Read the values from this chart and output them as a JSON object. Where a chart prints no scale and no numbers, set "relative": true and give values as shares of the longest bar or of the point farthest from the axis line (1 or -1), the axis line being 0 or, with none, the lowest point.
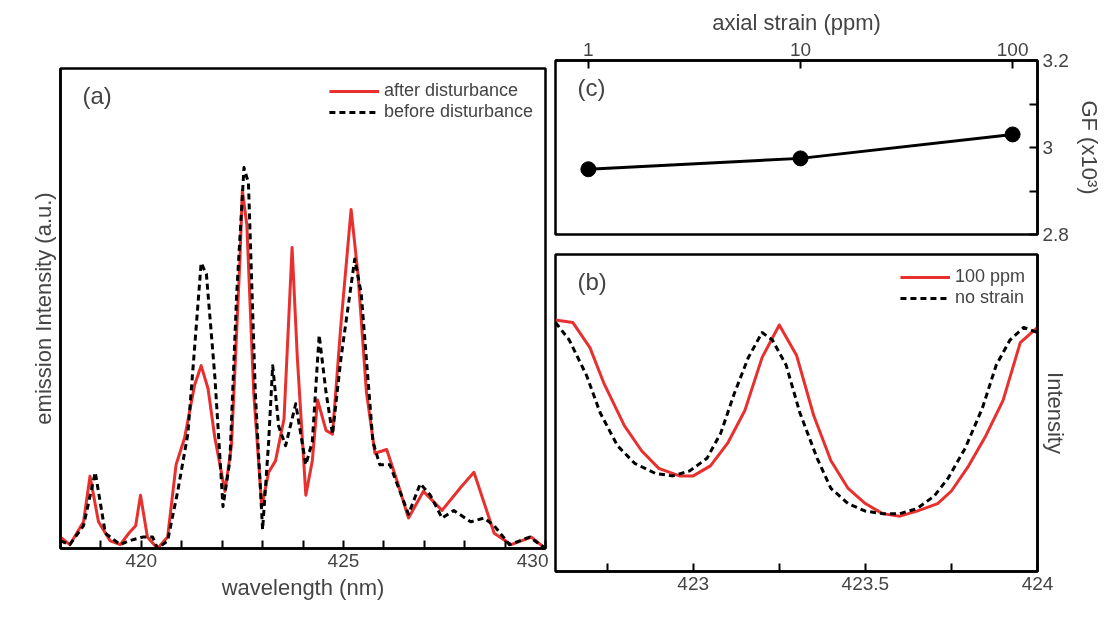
{
  "chart_data": [
    {
      "type": "line",
      "relative": true,
      "xlabel": "wavelength (nm)",
      "ylabel": "emission Intensity (a.u.)",
      "annotations": [
        "(a)"
      ],
      "legend": "top right",
      "xlim": [
        418,
        430
      ],
      "xticks": [
        {
          "value": 418,
          "label": null
        },
        {
          "value": 419,
          "label": null
        },
        420,
        {
          "value": 421,
          "label": null
        },
        {
          "value": 422,
          "label": null
        },
        {
          "value": 423,
          "label": null
        },
        {
          "value": 424,
          "label": null
        },
        425,
        {
          "value": 426,
          "label": null
        },
        {
          "value": 427,
          "label": null
        },
        {
          "value": 428,
          "label": null
        },
        {
          "value": 429,
          "label": null
        },
        430
      ],
      "series": [
        {
          "name": "after disturbance",
          "color": "#e8312f",
          "line_style": "solid",
          "x": [
            418.0,
            418.23,
            418.57,
            418.73,
            418.94,
            419.23,
            419.48,
            419.69,
            419.86,
            419.98,
            420.15,
            420.4,
            420.65,
            420.86,
            421.07,
            421.32,
            421.48,
            421.65,
            421.82,
            422.07,
            422.23,
            422.44,
            422.5,
            422.61,
            422.78,
            422.98,
            423.15,
            423.32,
            423.53,
            423.73,
            423.86,
            424.07,
            424.23,
            424.36,
            424.57,
            424.73,
            424.94,
            425.19,
            425.36,
            425.57,
            425.78,
            426.07,
            426.32,
            426.61,
            426.98,
            427.44,
            427.9,
            428.23,
            428.48,
            428.73,
            429.15,
            429.65,
            430.0
          ],
          "values": [
            0.03,
            0.01,
            0.07,
            0.19,
            0.07,
            0.02,
            0.01,
            0.04,
            0.06,
            0.14,
            0.03,
            0.0,
            0.03,
            0.22,
            0.29,
            0.43,
            0.48,
            0.42,
            0.29,
            0.15,
            0.27,
            0.76,
            0.94,
            0.85,
            0.41,
            0.11,
            0.2,
            0.23,
            0.34,
            0.79,
            0.5,
            0.14,
            0.23,
            0.39,
            0.31,
            0.3,
            0.59,
            0.89,
            0.72,
            0.41,
            0.25,
            0.26,
            0.18,
            0.08,
            0.15,
            0.1,
            0.16,
            0.2,
            0.12,
            0.04,
            0.01,
            0.03,
            0.0
          ]
        },
        {
          "name": "before disturbance",
          "color": "#000000",
          "line_style": "dashed",
          "x": [
            418.0,
            418.23,
            418.57,
            418.86,
            419.11,
            419.48,
            419.69,
            420.03,
            420.28,
            420.4,
            420.65,
            420.9,
            421.15,
            421.32,
            421.48,
            421.61,
            421.82,
            422.02,
            422.19,
            422.36,
            422.54,
            422.65,
            422.82,
            423.0,
            423.15,
            423.25,
            423.4,
            423.57,
            423.82,
            424.07,
            424.23,
            424.4,
            424.57,
            424.73,
            424.94,
            425.28,
            425.44,
            425.73,
            425.9,
            426.15,
            426.61,
            426.9,
            427.15,
            427.44,
            427.73,
            428.15,
            428.48,
            428.73,
            429.11,
            429.61,
            430.0
          ],
          "values": [
            0.02,
            0.01,
            0.06,
            0.2,
            0.04,
            0.01,
            0.02,
            0.03,
            0.03,
            0.0,
            0.02,
            0.15,
            0.3,
            0.53,
            0.75,
            0.72,
            0.45,
            0.11,
            0.23,
            0.67,
            1.0,
            0.96,
            0.41,
            0.05,
            0.28,
            0.48,
            0.32,
            0.27,
            0.38,
            0.22,
            0.28,
            0.56,
            0.41,
            0.3,
            0.5,
            0.76,
            0.67,
            0.28,
            0.22,
            0.22,
            0.09,
            0.17,
            0.14,
            0.08,
            0.1,
            0.07,
            0.08,
            0.06,
            0.01,
            0.03,
            0.0
          ]
        }
      ]
    },
    {
      "type": "line",
      "xlabel": "axial strain (ppm)",
      "ylabel": "GF (x10³)",
      "annotations": [
        "(c)"
      ],
      "log": "x",
      "marker": "circle",
      "xlim": [
        0.7,
        131
      ],
      "xticks": [
        1,
        10,
        100
      ],
      "ylim": [
        2.8,
        3.2
      ],
      "yticks": [
        2.8,
        {
          "value": 2.9,
          "label": null
        },
        3,
        {
          "value": 3.1,
          "label": null
        },
        3.2
      ],
      "series": [
        {
          "color": "#000000",
          "x": [
            1,
            10,
            100
          ],
          "values": [
            2.95,
            2.975,
            3.03
          ]
        }
      ]
    },
    {
      "type": "line",
      "relative": true,
      "ylabel": "Intensity",
      "annotations": [
        "(b)"
      ],
      "legend": "top right",
      "xlim": [
        422.6,
        424
      ],
      "xticks": [
        {
          "value": 422.75,
          "label": null
        },
        423,
        {
          "value": 423.25,
          "label": null
        },
        423.5,
        {
          "value": 423.75,
          "label": null
        },
        424
      ],
      "series": [
        {
          "name": "100 ppm",
          "color": "#e8312f",
          "line_style": "solid",
          "x": [
            422.6,
            422.65,
            422.7,
            422.74,
            422.8,
            422.85,
            422.9,
            422.96,
            423.0,
            423.05,
            423.1,
            423.15,
            423.2,
            423.25,
            423.3,
            423.35,
            423.4,
            423.45,
            423.5,
            423.55,
            423.6,
            423.65,
            423.71,
            423.75,
            423.8,
            423.85,
            423.9,
            423.95,
            424.0
          ],
          "values": [
            1.0,
            0.99,
            0.89,
            0.75,
            0.58,
            0.48,
            0.41,
            0.38,
            0.38,
            0.42,
            0.51,
            0.64,
            0.85,
            0.98,
            0.86,
            0.62,
            0.44,
            0.33,
            0.27,
            0.23,
            0.22,
            0.24,
            0.27,
            0.32,
            0.42,
            0.54,
            0.68,
            0.91,
            0.97
          ]
        },
        {
          "name": "no strain",
          "color": "#000000",
          "line_style": "dashed",
          "x": [
            422.6,
            422.64,
            422.69,
            422.73,
            422.78,
            422.83,
            422.89,
            422.94,
            422.99,
            423.04,
            423.08,
            423.12,
            423.16,
            423.2,
            423.23,
            423.27,
            423.31,
            423.36,
            423.4,
            423.45,
            423.5,
            423.55,
            423.6,
            423.65,
            423.7,
            423.74,
            423.79,
            423.84,
            423.88,
            423.92,
            423.96,
            424.0
          ],
          "values": [
            0.99,
            0.92,
            0.78,
            0.63,
            0.5,
            0.43,
            0.39,
            0.38,
            0.4,
            0.45,
            0.55,
            0.71,
            0.85,
            0.95,
            0.92,
            0.82,
            0.63,
            0.45,
            0.33,
            0.27,
            0.24,
            0.23,
            0.23,
            0.25,
            0.3,
            0.37,
            0.49,
            0.65,
            0.82,
            0.92,
            0.97,
            0.95
          ]
        }
      ]
    }
  ]
}
